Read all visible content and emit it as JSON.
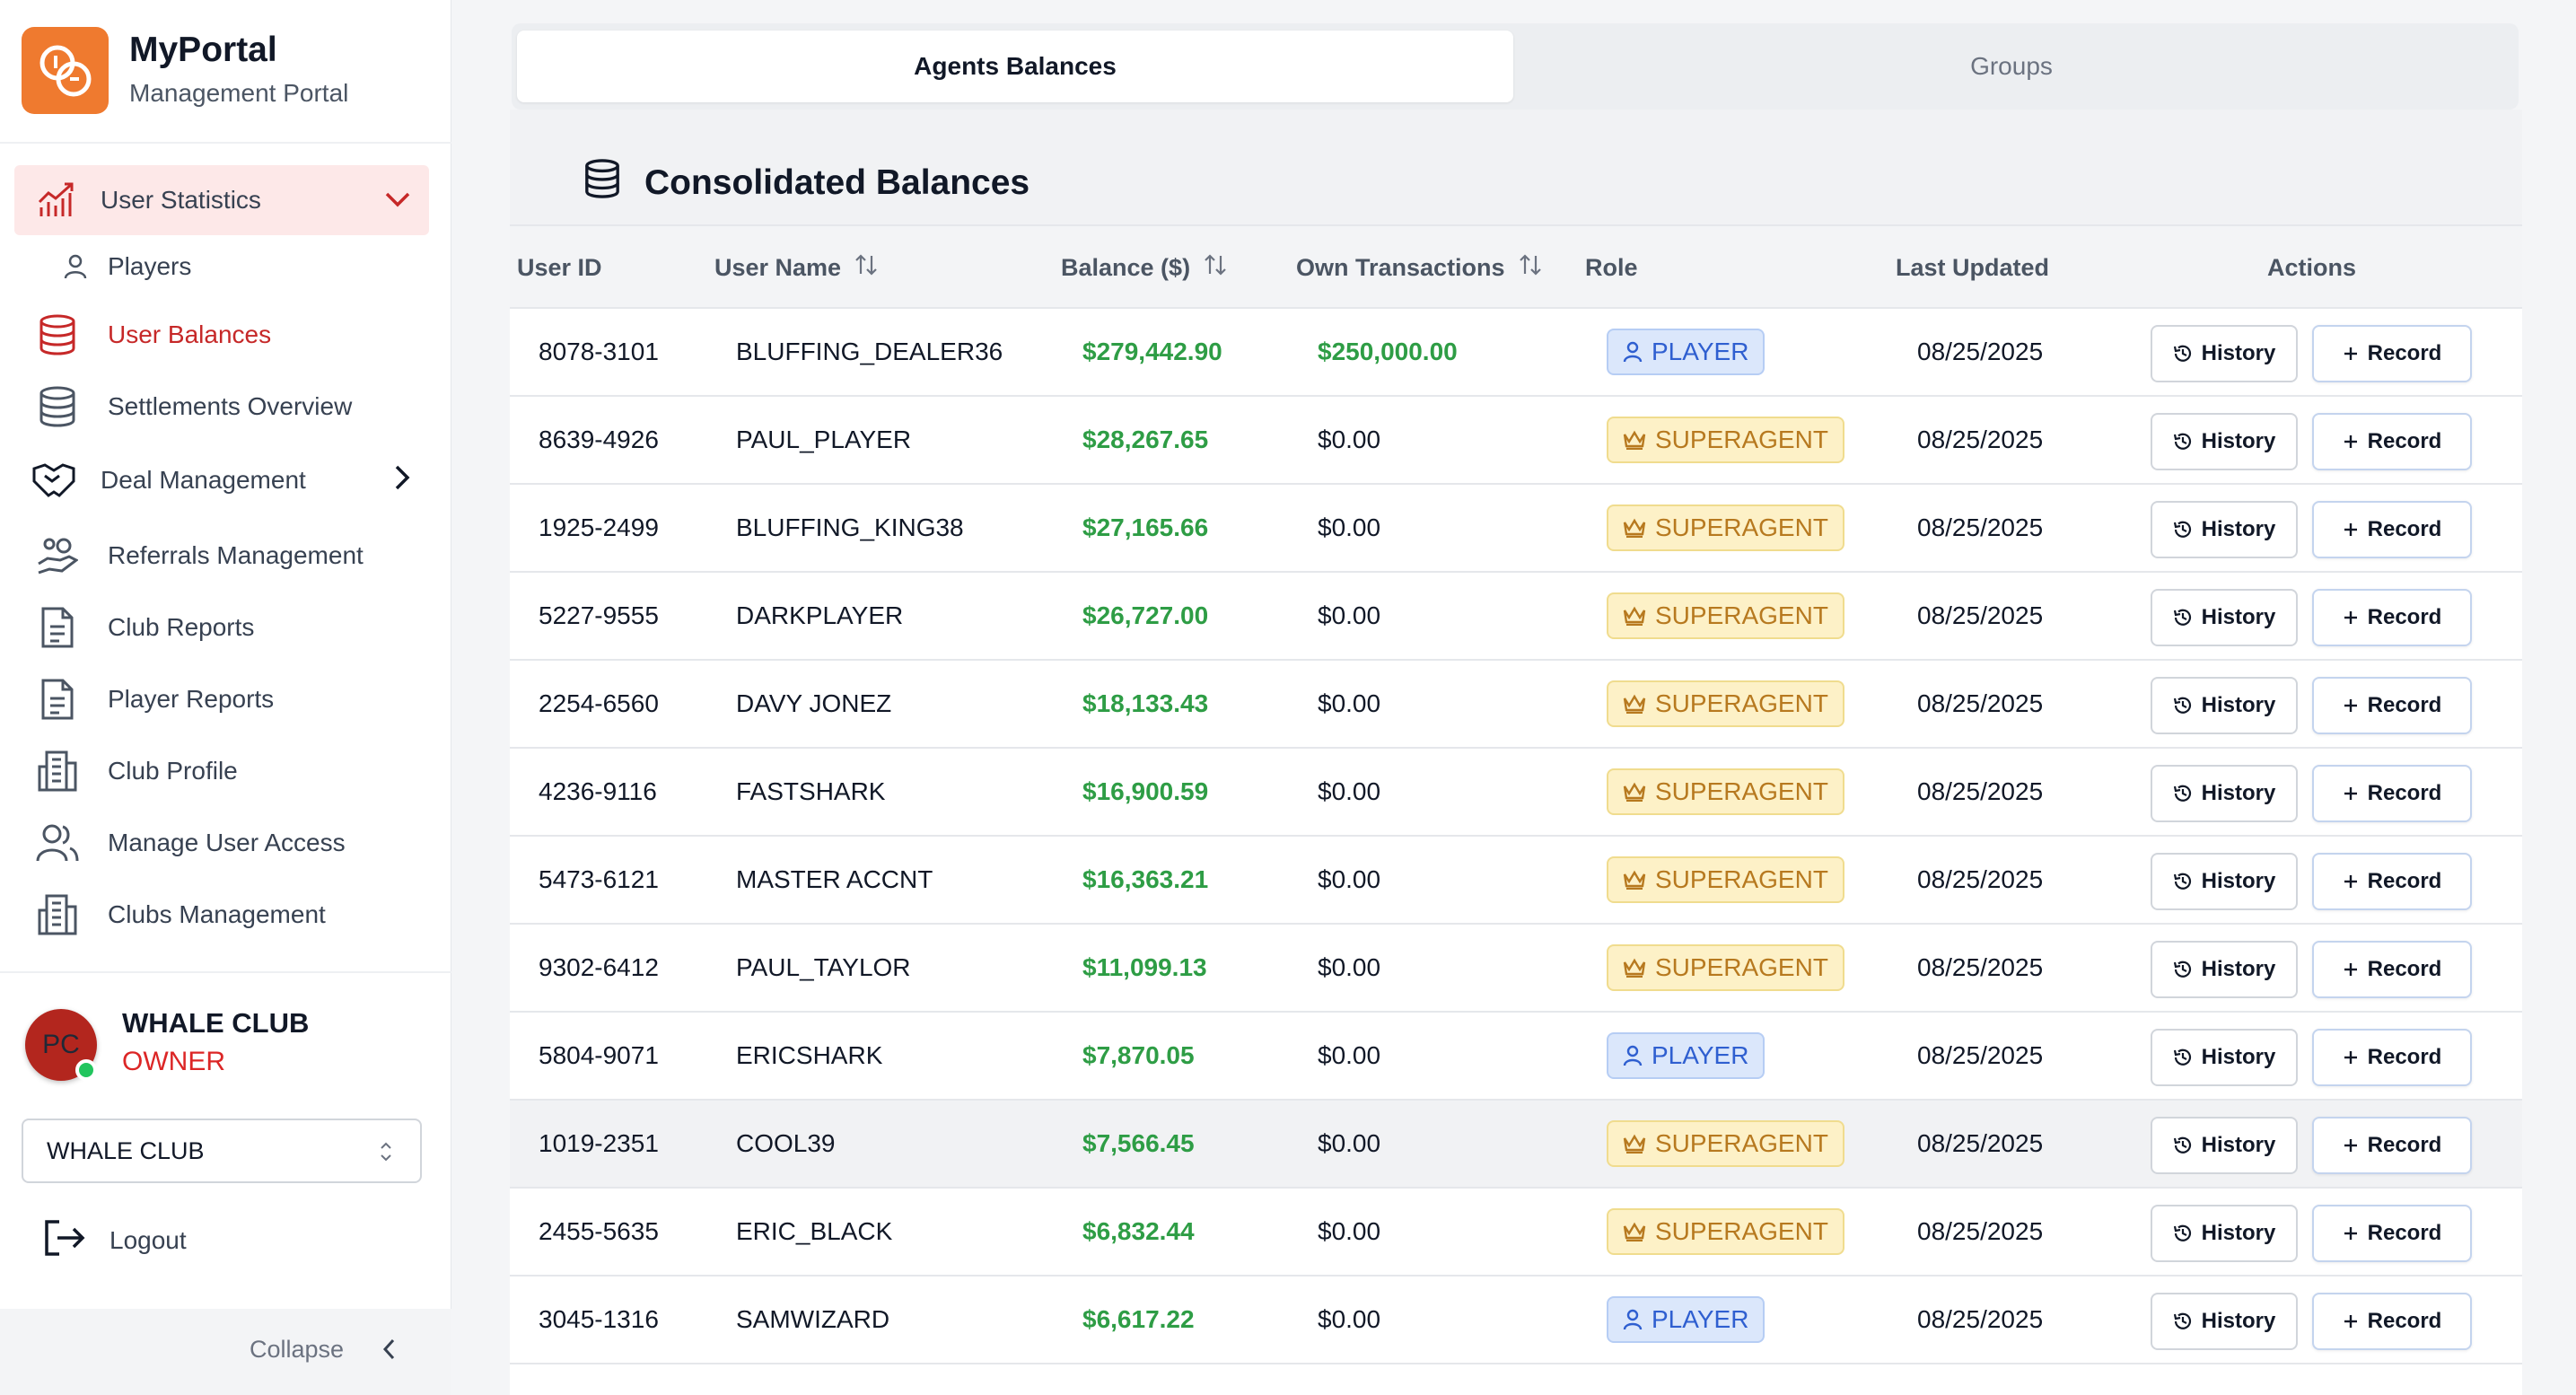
{
  "brand": {
    "title": "MyPortal",
    "subtitle": "Management Portal",
    "accent": "#ef7a2f"
  },
  "nav": {
    "user_statistics": "User Statistics",
    "players": "Players",
    "user_balances": "User Balances",
    "settlements_overview": "Settlements Overview",
    "deal_management": "Deal Management",
    "referrals_management": "Referrals Management",
    "club_reports": "Club Reports",
    "player_reports": "Player Reports",
    "club_profile": "Club Profile",
    "manage_user_access": "Manage User Access",
    "clubs_management": "Clubs Management",
    "active_color": "#c62828"
  },
  "user": {
    "initials": "PC",
    "club_name": "WHALE CLUB",
    "role": "OWNER",
    "selected_club": "WHALE CLUB",
    "status": "online",
    "logout": "Logout",
    "collapse": "Collapse"
  },
  "tabs": {
    "agents_balances": "Agents Balances",
    "groups": "Groups",
    "active": "Agents Balances"
  },
  "card": {
    "title": "Consolidated Balances"
  },
  "table": {
    "headers": {
      "user_id": "User ID",
      "user_name": "User Name",
      "balance": "Balance ($)",
      "own_transactions": "Own Transactions",
      "role": "Role",
      "last_updated": "Last Updated",
      "actions": "Actions"
    },
    "history_label": "History",
    "record_label": "Record",
    "money_color": "#2e9d45",
    "rows": [
      {
        "id": "8078-3101",
        "name": "BLUFFING_DEALER36",
        "balance": "$279,442.90",
        "own": "$250,000.00",
        "own_positive": true,
        "role": "PLAYER",
        "updated": "08/25/2025"
      },
      {
        "id": "8639-4926",
        "name": "PAUL_PLAYER",
        "balance": "$28,267.65",
        "own": "$0.00",
        "own_positive": false,
        "role": "SUPERAGENT",
        "updated": "08/25/2025"
      },
      {
        "id": "1925-2499",
        "name": "BLUFFING_KING38",
        "balance": "$27,165.66",
        "own": "$0.00",
        "own_positive": false,
        "role": "SUPERAGENT",
        "updated": "08/25/2025"
      },
      {
        "id": "5227-9555",
        "name": "DARKPLAYER",
        "balance": "$26,727.00",
        "own": "$0.00",
        "own_positive": false,
        "role": "SUPERAGENT",
        "updated": "08/25/2025"
      },
      {
        "id": "2254-6560",
        "name": "DAVY JONEZ",
        "balance": "$18,133.43",
        "own": "$0.00",
        "own_positive": false,
        "role": "SUPERAGENT",
        "updated": "08/25/2025"
      },
      {
        "id": "4236-9116",
        "name": "FASTSHARK",
        "balance": "$16,900.59",
        "own": "$0.00",
        "own_positive": false,
        "role": "SUPERAGENT",
        "updated": "08/25/2025"
      },
      {
        "id": "5473-6121",
        "name": "MASTER ACCNT",
        "balance": "$16,363.21",
        "own": "$0.00",
        "own_positive": false,
        "role": "SUPERAGENT",
        "updated": "08/25/2025"
      },
      {
        "id": "9302-6412",
        "name": "PAUL_TAYLOR",
        "balance": "$11,099.13",
        "own": "$0.00",
        "own_positive": false,
        "role": "SUPERAGENT",
        "updated": "08/25/2025"
      },
      {
        "id": "5804-9071",
        "name": "ERICSHARK",
        "balance": "$7,870.05",
        "own": "$0.00",
        "own_positive": false,
        "role": "PLAYER",
        "updated": "08/25/2025"
      },
      {
        "id": "1019-2351",
        "name": "COOL39",
        "balance": "$7,566.45",
        "own": "$0.00",
        "own_positive": false,
        "role": "SUPERAGENT",
        "updated": "08/25/2025"
      },
      {
        "id": "2455-5635",
        "name": "ERIC_BLACK",
        "balance": "$6,832.44",
        "own": "$0.00",
        "own_positive": false,
        "role": "SUPERAGENT",
        "updated": "08/25/2025"
      },
      {
        "id": "3045-1316",
        "name": "SAMWIZARD",
        "balance": "$6,617.22",
        "own": "$0.00",
        "own_positive": false,
        "role": "PLAYER",
        "updated": "08/25/2025"
      }
    ]
  }
}
